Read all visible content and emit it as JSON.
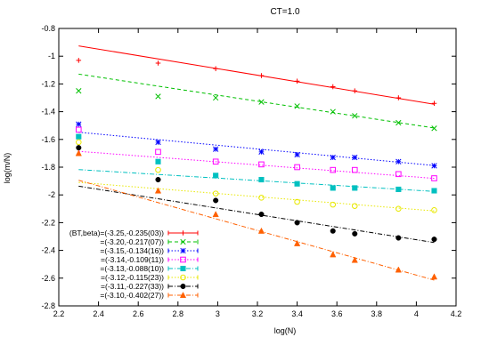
{
  "chart_data": {
    "type": "scatter",
    "title": "CT=1.0",
    "xlabel": "log(N)",
    "ylabel": "log(m/N)",
    "xlim": [
      2.2,
      4.2
    ],
    "ylim": [
      -2.8,
      -0.8
    ],
    "xticks": [
      2.2,
      2.4,
      2.6,
      2.8,
      3,
      3.2,
      3.4,
      3.6,
      3.8,
      4,
      4.2
    ],
    "yticks": [
      -2.8,
      -2.6,
      -2.4,
      -2.2,
      -2,
      -1.8,
      -1.6,
      -1.4,
      -1.2,
      -1,
      -0.8
    ],
    "xtick_labels": [
      "2.2",
      "2.4",
      "2.6",
      "2.8",
      "3",
      "3.2",
      "3.4",
      "3.6",
      "3.8",
      "4",
      "4.2"
    ],
    "ytick_labels": [
      "-2.8",
      "-2.6",
      "-2.4",
      "-2.2",
      "-2",
      "-1.8",
      "-1.6",
      "-1.4",
      "-1.2",
      "-1",
      "-0.8"
    ],
    "x": [
      2.3,
      2.7,
      2.99,
      3.22,
      3.4,
      3.58,
      3.69,
      3.91,
      4.09
    ],
    "legend_position": "bottom-left",
    "grid": false,
    "series": [
      {
        "name": "(BT,beta)=(-3.25,-0.235(03))",
        "color": "#ff0000",
        "marker": "plus",
        "dash": "",
        "fit_intercept": -0.385,
        "fit_slope": -0.235,
        "y": [
          -1.03,
          -1.05,
          -1.09,
          -1.14,
          -1.18,
          -1.22,
          -1.25,
          -1.3,
          -1.34
        ]
      },
      {
        "name": "=(-3.20,-0.217(07))",
        "color": "#00c000",
        "marker": "x",
        "dash": "4,3",
        "fit_intercept": -0.63,
        "fit_slope": -0.217,
        "y": [
          -1.25,
          -1.29,
          -1.3,
          -1.33,
          -1.36,
          -1.4,
          -1.43,
          -1.48,
          -1.52
        ]
      },
      {
        "name": "=(-3.15,-0.134(16))",
        "color": "#0000ff",
        "marker": "star",
        "dash": "1.5,2",
        "fit_intercept": -1.24,
        "fit_slope": -0.134,
        "y": [
          -1.49,
          -1.62,
          -1.67,
          -1.69,
          -1.71,
          -1.73,
          -1.73,
          -1.76,
          -1.79
        ]
      },
      {
        "name": "=(-3.14,-0.109(11))",
        "color": "#ff00ff",
        "marker": "square",
        "dash": "1.5,2",
        "fit_intercept": -1.435,
        "fit_slope": -0.109,
        "y": [
          -1.53,
          -1.69,
          -1.76,
          -1.78,
          -1.8,
          -1.82,
          -1.82,
          -1.85,
          -1.88
        ]
      },
      {
        "name": "=(-3.13,-0.088(10))",
        "color": "#00c0c0",
        "marker": "square-filled",
        "dash": "5,2,1,2",
        "fit_intercept": -1.615,
        "fit_slope": -0.088,
        "y": [
          -1.58,
          -1.76,
          -1.86,
          -1.89,
          -1.92,
          -1.95,
          -1.95,
          -1.96,
          -1.97
        ]
      },
      {
        "name": "=(-3.12,-0.115(23))",
        "color": "#e8e800",
        "marker": "circle",
        "dash": "1.5,2",
        "fit_intercept": -1.645,
        "fit_slope": -0.115,
        "y": [
          -1.62,
          -1.82,
          -1.99,
          -2.02,
          -2.05,
          -2.07,
          -2.08,
          -2.1,
          -2.11
        ]
      },
      {
        "name": "=(-3.11,-0.227(33))",
        "color": "#000000",
        "marker": "circle-filled",
        "dash": "5,2,1,2",
        "fit_intercept": -1.415,
        "fit_slope": -0.227,
        "y": [
          -1.66,
          -1.89,
          -2.04,
          -2.14,
          -2.2,
          -2.26,
          -2.28,
          -2.31,
          -2.32
        ]
      },
      {
        "name": "=(-3.10,-0.402(27))",
        "color": "#ff6000",
        "marker": "triangle",
        "dash": "5,2,1,2",
        "fit_intercept": -0.97,
        "fit_slope": -0.402,
        "y": [
          -1.7,
          -1.97,
          -2.14,
          -2.26,
          -2.35,
          -2.43,
          -2.47,
          -2.54,
          -2.59
        ]
      }
    ]
  }
}
